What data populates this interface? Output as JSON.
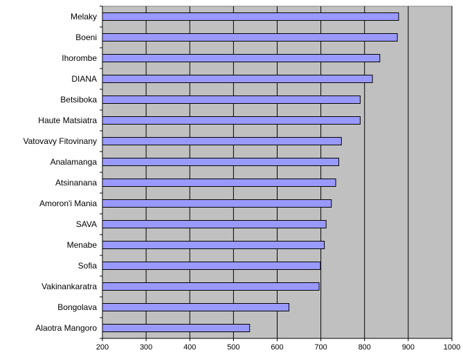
{
  "chart_data": {
    "type": "bar",
    "orientation": "horizontal",
    "categories": [
      "Melaky",
      "Boeni",
      "Ihorombe",
      "DIANA",
      "Betsiboka",
      "Haute Matsiatra",
      "Vatovavy Fitovinany",
      "Analamanga",
      "Atsinanana",
      "Amoron'i Mania",
      "SAVA",
      "Menabe",
      "Sofia",
      "Vakinankaratra",
      "Bongolava",
      "Alaotra Mangoro"
    ],
    "values": [
      878,
      875,
      835,
      818,
      790,
      790,
      747,
      741,
      734,
      724,
      712,
      708,
      699,
      696,
      627,
      537
    ],
    "title": "",
    "xlabel": "",
    "ylabel": "",
    "xlim": [
      200,
      1000
    ],
    "xticks": [
      200,
      300,
      400,
      500,
      600,
      700,
      800,
      900,
      1000
    ],
    "xtick_labels": [
      "200",
      "300",
      "400",
      "500",
      "600",
      "700",
      "800",
      "900",
      "1000"
    ],
    "grid": "vertical gridlines",
    "legend": "none",
    "colors": {
      "bar_fill": "#9999ff",
      "bar_stroke": "#000000",
      "plot_background": "#c0c0c0",
      "gridline": "#000000"
    }
  }
}
